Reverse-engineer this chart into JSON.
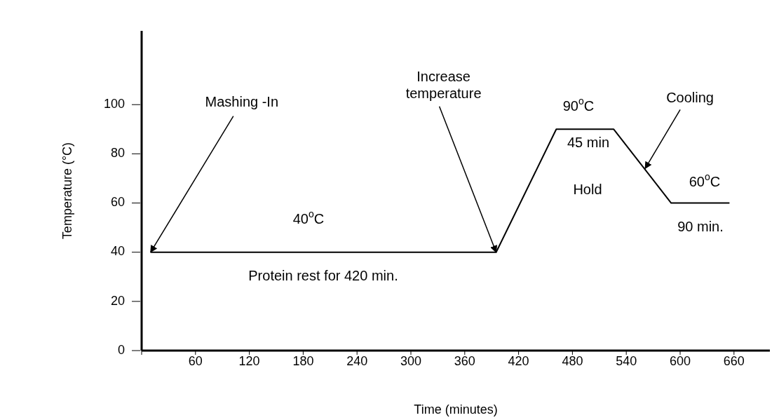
{
  "chart_data": {
    "type": "line",
    "xlabel": "Time (minutes)",
    "ylabel": "Temperature (°C)",
    "x": [
      10,
      395,
      462,
      526,
      590,
      655
    ],
    "series": [
      {
        "color": "#000000",
        "values": [
          40,
          40,
          90,
          90,
          60,
          60
        ]
      }
    ],
    "xlim": [
      0,
      700
    ],
    "ylim": [
      0,
      130
    ],
    "xticks": [
      {
        "value": 0,
        "label": null
      },
      60,
      120,
      180,
      240,
      300,
      360,
      420,
      480,
      540,
      600,
      660
    ],
    "yticks": [
      0,
      20,
      40,
      60,
      80,
      100
    ],
    "grid": false,
    "legend": false,
    "marker": "none",
    "line_style": "solid",
    "annotations": [
      {
        "text": "Mashing -In",
        "x": 10,
        "y": 40
      },
      {
        "text": "Increase temperature",
        "x": 395,
        "y": 40
      },
      {
        "text": "Cooling",
        "x": 561,
        "y": 74
      },
      "40$^{o}$C",
      "Protein rest for 420 min.",
      "90$^{o}$C",
      "45 min",
      "Hold",
      "60$^{o}$C",
      "90 min."
    ]
  }
}
